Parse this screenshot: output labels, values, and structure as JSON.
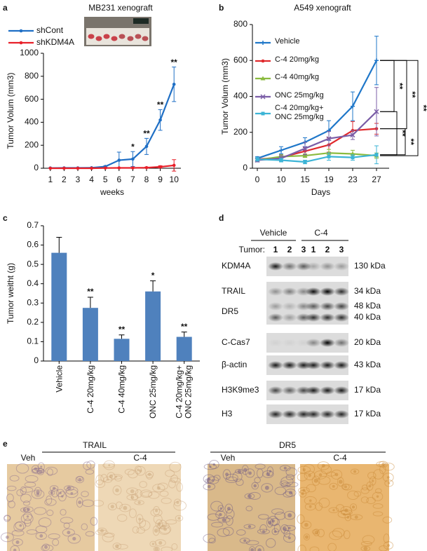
{
  "panel_labels": [
    "a",
    "b",
    "c",
    "d",
    "e"
  ],
  "chart_data": [
    {
      "type": "line",
      "title": "MB231 xenograft",
      "x_label": "weeks",
      "y_label": "Tumor Volum (mm3)",
      "categories": [
        "1",
        "2",
        "3",
        "4",
        "5",
        "6",
        "7",
        "8",
        "9",
        "10"
      ],
      "series": [
        {
          "name": "shCont",
          "color": "#1f6fc5",
          "values": [
            2,
            3,
            3,
            4,
            15,
            70,
            80,
            190,
            420,
            730
          ],
          "errors": [
            2,
            2,
            2,
            3,
            5,
            70,
            65,
            70,
            90,
            150
          ]
        },
        {
          "name": "shKDM4A",
          "color": "#e8202a",
          "values": [
            0,
            0,
            0,
            0,
            2,
            3,
            3,
            5,
            12,
            25
          ],
          "errors": [
            1,
            1,
            1,
            1,
            2,
            3,
            3,
            5,
            10,
            50
          ]
        }
      ],
      "annotations": [
        null,
        null,
        null,
        null,
        null,
        null,
        "*",
        "**",
        "**",
        "**"
      ],
      "ylim": [
        0,
        1000
      ],
      "yticks": [
        0,
        200,
        400,
        600,
        800,
        1000
      ],
      "grid": false
    },
    {
      "type": "line",
      "title": "A549 xenograft",
      "x_label": "Days",
      "y_label": "Tumor Volum (mm3)",
      "categories": [
        "0",
        "10",
        "15",
        "19",
        "23",
        "27"
      ],
      "series": [
        {
          "name": "Vehicle",
          "color": "#1f77c9",
          "values": [
            55,
            100,
            145,
            210,
            345,
            600
          ],
          "errors": [
            10,
            20,
            25,
            55,
            80,
            135
          ]
        },
        {
          "name": "C-4 20mg/kg",
          "color": "#e0292c",
          "values": [
            50,
            60,
            95,
            130,
            210,
            220
          ],
          "errors": [
            8,
            15,
            20,
            40,
            50,
            30
          ]
        },
        {
          "name": "C-4 40mg/kg",
          "color": "#8bbb3f",
          "values": [
            45,
            65,
            70,
            85,
            80,
            70
          ],
          "errors": [
            8,
            10,
            10,
            20,
            20,
            15
          ]
        },
        {
          "name": "ONC 25mg/kg",
          "color": "#7b5ea7",
          "values": [
            45,
            55,
            110,
            165,
            185,
            315
          ],
          "errors": [
            10,
            15,
            35,
            40,
            25,
            135
          ]
        },
        {
          "name": "C-4 20mg/kg+ ONC 25mg/kg",
          "color": "#3cb4d6",
          "values": [
            50,
            45,
            35,
            65,
            60,
            75
          ],
          "errors": [
            10,
            10,
            10,
            20,
            15,
            50
          ]
        }
      ],
      "significance_labels": [
        "**",
        "**",
        "**",
        "**",
        "**"
      ],
      "ylim": [
        0,
        800
      ],
      "yticks": [
        0,
        200,
        400,
        600,
        800
      ],
      "grid": false
    },
    {
      "type": "bar",
      "y_label": "Tumor weitht (g)",
      "categories": [
        "Vehicle",
        "C-4 20mg/kg",
        "C-4 40mg/kg",
        "ONC 25mg/kg",
        "C-4 20mg/kg+ ONC 25mg/kg"
      ],
      "values": [
        0.56,
        0.275,
        0.115,
        0.36,
        0.125
      ],
      "errors": [
        0.08,
        0.055,
        0.02,
        0.055,
        0.025
      ],
      "annotations": [
        null,
        "**",
        "**",
        "*",
        "**"
      ],
      "color": "#4f81bd",
      "ylim": [
        0,
        0.7
      ],
      "yticks": [
        0,
        0.1,
        0.2,
        0.3,
        0.4,
        0.5,
        0.6,
        0.7
      ],
      "grid": false
    }
  ],
  "blot": {
    "groups": [
      "Vehicle",
      "C-4"
    ],
    "lane_header": "Tumor:",
    "lanes": [
      "1",
      "2",
      "3",
      "1",
      "2",
      "3"
    ],
    "rows": [
      {
        "name": "KDM4A",
        "sizes": [
          "130 kDa"
        ]
      },
      {
        "name": "TRAIL",
        "sizes": [
          "34 kDa"
        ]
      },
      {
        "name": "DR5",
        "sizes": [
          "48 kDa",
          "40 kDa"
        ]
      },
      {
        "name": "C-Cas7",
        "sizes": [
          "20 kDa"
        ]
      },
      {
        "name": "β-actin",
        "sizes": [
          "43 kDa"
        ]
      },
      {
        "name": "H3K9me3",
        "sizes": [
          "17 kDa"
        ]
      },
      {
        "name": "H3",
        "sizes": [
          "17 kDa"
        ]
      }
    ]
  },
  "ihc": [
    {
      "title": "TRAIL",
      "labels": [
        "Veh",
        "C-4"
      ]
    },
    {
      "title": "DR5",
      "labels": [
        "Veh",
        "C-4"
      ]
    }
  ]
}
